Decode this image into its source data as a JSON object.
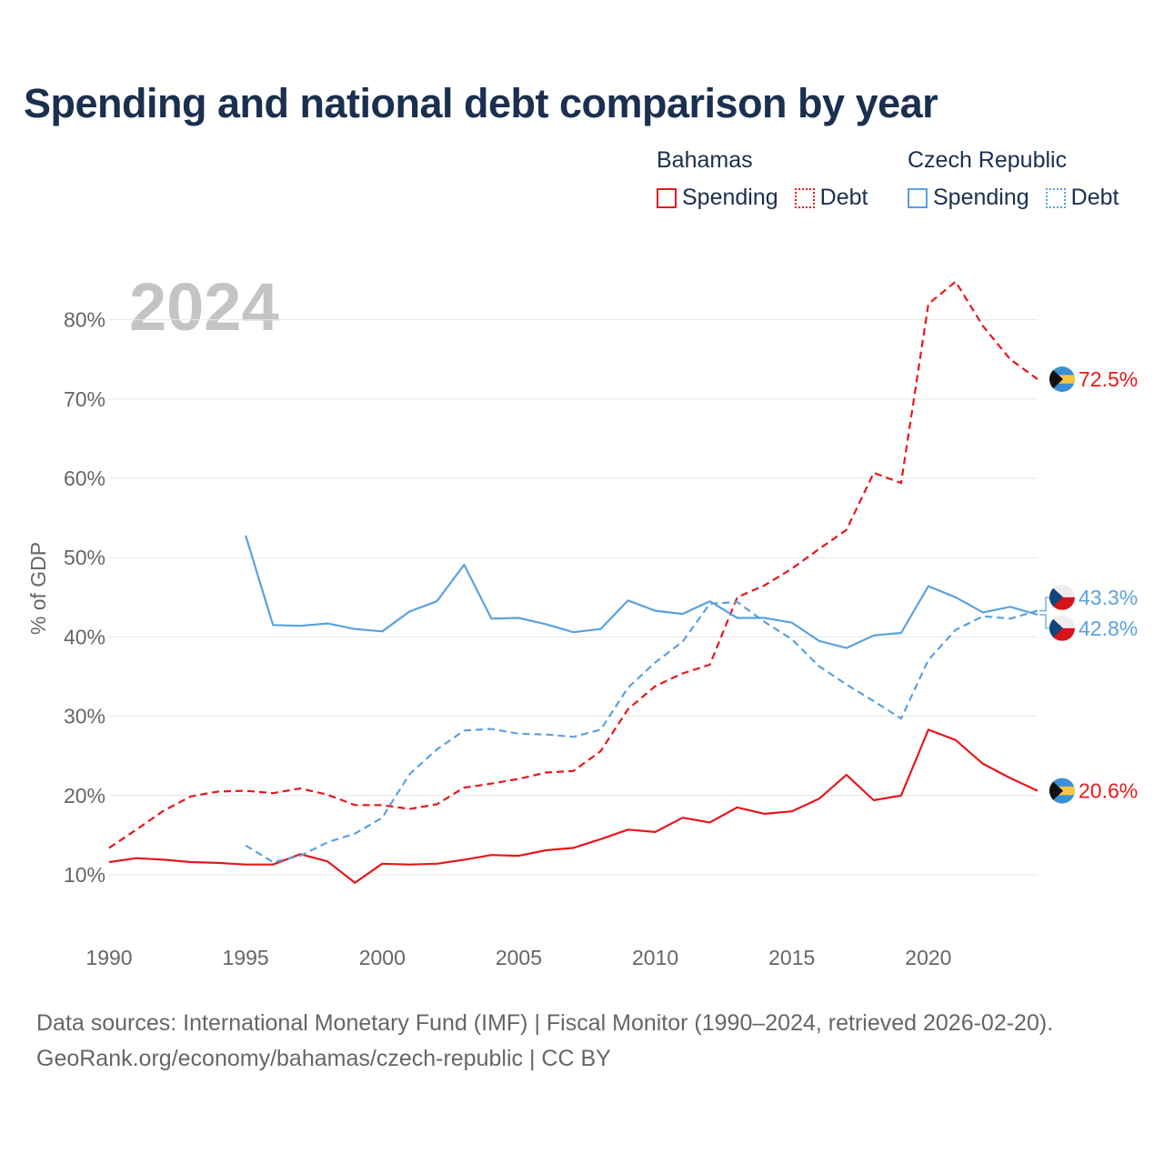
{
  "title": "Spending and national debt comparison by year",
  "legend": {
    "groups": [
      {
        "name": "Bahamas",
        "color": "#e8161b",
        "items": [
          {
            "label": "Spending",
            "style": "solid"
          },
          {
            "label": "Debt",
            "style": "dotted"
          }
        ]
      },
      {
        "name": "Czech Republic",
        "color": "#5ba1e0",
        "items": [
          {
            "label": "Spending",
            "style": "solid"
          },
          {
            "label": "Debt",
            "style": "dotted"
          }
        ]
      }
    ]
  },
  "footer": {
    "line1": "Data sources: International Monetary Fund (IMF) | Fiscal Monitor (1990–2024, retrieved 2026-02-20).",
    "line2": "GeoRank.org/economy/bahamas/czech-republic | CC BY"
  },
  "chart_data": {
    "type": "line",
    "year_label": "2024",
    "ylabel": "% of GDP",
    "xlim": [
      1990,
      2024
    ],
    "ylim": [
      5,
      88
    ],
    "x_ticks": [
      1990,
      1995,
      2000,
      2005,
      2010,
      2015,
      2020
    ],
    "y_ticks": [
      {
        "value": 10,
        "label": "10%"
      },
      {
        "value": 20,
        "label": "20%"
      },
      {
        "value": 30,
        "label": "30%"
      },
      {
        "value": 40,
        "label": "40%"
      },
      {
        "value": 50,
        "label": "50%"
      },
      {
        "value": 60,
        "label": "60%"
      },
      {
        "value": 70,
        "label": "70%"
      },
      {
        "value": 80,
        "label": "80%"
      }
    ],
    "series": [
      {
        "id": "bahamas-spending",
        "name": "Bahamas Spending",
        "color": "#e8161b",
        "dash": "",
        "start_year": 1990,
        "values": [
          11.6,
          12.1,
          11.9,
          11.6,
          11.5,
          11.3,
          11.3,
          12.6,
          11.7,
          9.0,
          11.4,
          11.3,
          11.4,
          11.9,
          12.5,
          12.4,
          13.1,
          13.4,
          14.5,
          15.7,
          15.4,
          17.2,
          16.6,
          18.5,
          17.7,
          18.0,
          19.6,
          22.6,
          19.4,
          20.0,
          28.3,
          27.0,
          24.0,
          22.2,
          20.6
        ],
        "end_label": "20.6%",
        "flag": "bahamas"
      },
      {
        "id": "bahamas-debt",
        "name": "Bahamas Debt",
        "color": "#e8161b",
        "dash": "8 5",
        "start_year": 1990,
        "values": [
          13.4,
          15.7,
          18.1,
          19.9,
          20.5,
          20.6,
          20.3,
          20.9,
          20.1,
          18.8,
          18.8,
          18.3,
          18.9,
          21.0,
          21.5,
          22.1,
          22.9,
          23.1,
          25.6,
          30.9,
          33.8,
          35.4,
          36.5,
          45.0,
          46.5,
          48.6,
          51.1,
          53.5,
          60.7,
          59.4,
          82.0,
          84.8,
          79.2,
          75.0,
          72.5
        ],
        "end_label": "72.5%",
        "flag": "bahamas"
      },
      {
        "id": "czech-spending",
        "name": "Czech Republic Spending",
        "color": "#5ba1e0",
        "dash": "",
        "start_year": 1995,
        "values": [
          52.8,
          41.5,
          41.4,
          41.7,
          41.0,
          40.7,
          43.2,
          44.5,
          49.1,
          42.3,
          42.4,
          41.6,
          40.6,
          41.0,
          44.6,
          43.3,
          42.9,
          44.5,
          42.4,
          42.4,
          41.8,
          39.5,
          38.6,
          40.2,
          40.5,
          46.4,
          45.0,
          43.1,
          43.8,
          42.8
        ],
        "end_label": "42.8%",
        "flag": "czech"
      },
      {
        "id": "czech-debt",
        "name": "Czech Republic Debt",
        "color": "#5ba1e0",
        "dash": "8 5",
        "start_year": 1995,
        "values": [
          13.7,
          11.6,
          12.4,
          14.1,
          15.2,
          17.2,
          22.7,
          25.8,
          28.2,
          28.4,
          27.8,
          27.7,
          27.4,
          28.3,
          33.6,
          36.8,
          39.4,
          44.2,
          44.4,
          41.9,
          39.7,
          36.3,
          34.0,
          31.9,
          29.7,
          37.1,
          40.9,
          42.6,
          42.3,
          43.3
        ],
        "end_label": "43.3%",
        "flag": "czech"
      }
    ]
  }
}
